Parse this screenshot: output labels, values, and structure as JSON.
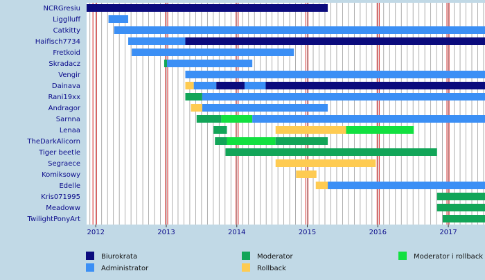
{
  "chart_data": {
    "type": "gantt",
    "x_axis": {
      "unit": "year",
      "range": [
        2011.87,
        2017.52
      ],
      "ticks": [
        2012,
        2013,
        2014,
        2015,
        2016,
        2017
      ],
      "tick_labels": [
        "2012",
        "2013",
        "2014",
        "2015",
        "2016",
        "2017"
      ],
      "red_lines": [
        2011.96,
        2012.01,
        2012.99,
        2013.02,
        2013.99,
        2014.02,
        2014.98,
        2015.01,
        2015.99,
        2016.02,
        2016.98,
        2017.01
      ],
      "minor_grid": "monthly"
    },
    "legend": [
      {
        "key": "biurokrata",
        "label": "Biurokrata",
        "color": "#0b0b7d"
      },
      {
        "key": "admin",
        "label": "Administrator",
        "color": "#3b8ff5"
      },
      {
        "key": "moderator",
        "label": "Moderator",
        "color": "#12a558"
      },
      {
        "key": "rollback",
        "label": "Rollback",
        "color": "#fecb52"
      },
      {
        "key": "modrb",
        "label": "Moderator i rollback",
        "color": "#12e040"
      }
    ],
    "rows": [
      {
        "name": "NCRGresiu",
        "bars": [
          {
            "role": "biurokrata",
            "start": 2011.87,
            "end": 2015.29
          }
        ]
      },
      {
        "name": "Ligglluff",
        "bars": [
          {
            "role": "admin",
            "start": 2012.18,
            "end": 2012.46
          }
        ]
      },
      {
        "name": "Catkitty",
        "bars": [
          {
            "role": "admin",
            "start": 2012.26,
            "end": 2017.52
          }
        ]
      },
      {
        "name": "Haifisch7734",
        "bars": [
          {
            "role": "admin",
            "start": 2012.46,
            "end": 2013.27
          },
          {
            "role": "biurokrata",
            "start": 2013.27,
            "end": 2017.52
          }
        ]
      },
      {
        "name": "Fretkoid",
        "bars": [
          {
            "role": "admin",
            "start": 2012.51,
            "end": 2014.81
          }
        ]
      },
      {
        "name": "Skradacz",
        "bars": [
          {
            "role": "moderator",
            "start": 2012.97,
            "end": 2013.01
          },
          {
            "role": "admin",
            "start": 2013.01,
            "end": 2014.22
          }
        ]
      },
      {
        "name": "Vengir",
        "bars": [
          {
            "role": "admin",
            "start": 2013.27,
            "end": 2017.52
          }
        ]
      },
      {
        "name": "Dainava",
        "bars": [
          {
            "role": "rollback",
            "start": 2013.27,
            "end": 2013.39
          },
          {
            "role": "admin",
            "start": 2013.39,
            "end": 2013.71
          },
          {
            "role": "biurokrata",
            "start": 2013.71,
            "end": 2014.11
          },
          {
            "role": "admin",
            "start": 2014.11,
            "end": 2014.41
          },
          {
            "role": "biurokrata",
            "start": 2014.41,
            "end": 2017.52
          }
        ]
      },
      {
        "name": "Rani19xx",
        "bars": [
          {
            "role": "moderator",
            "start": 2013.27,
            "end": 2013.51
          },
          {
            "role": "admin",
            "start": 2013.51,
            "end": 2017.52
          }
        ]
      },
      {
        "name": "Andragor",
        "bars": [
          {
            "role": "rollback",
            "start": 2013.35,
            "end": 2013.51
          },
          {
            "role": "admin",
            "start": 2013.51,
            "end": 2015.29
          }
        ]
      },
      {
        "name": "Sarnna",
        "bars": [
          {
            "role": "moderator",
            "start": 2013.43,
            "end": 2013.78
          },
          {
            "role": "modrb",
            "start": 2013.78,
            "end": 2014.22
          },
          {
            "role": "admin",
            "start": 2014.22,
            "end": 2017.52
          }
        ]
      },
      {
        "name": "Lenaa",
        "bars": [
          {
            "role": "moderator",
            "start": 2013.67,
            "end": 2013.86
          },
          {
            "role": "rollback",
            "start": 2014.55,
            "end": 2015.55
          },
          {
            "role": "modrb",
            "start": 2015.55,
            "end": 2016.51
          }
        ]
      },
      {
        "name": "TheDarkAlicorn",
        "bars": [
          {
            "role": "moderator",
            "start": 2013.69,
            "end": 2013.86
          },
          {
            "role": "modrb",
            "start": 2013.86,
            "end": 2014.55
          },
          {
            "role": "moderator",
            "start": 2014.55,
            "end": 2015.29
          }
        ]
      },
      {
        "name": "Tiger beetle",
        "bars": [
          {
            "role": "moderator",
            "start": 2013.84,
            "end": 2016.84
          }
        ]
      },
      {
        "name": "Segraece",
        "bars": [
          {
            "role": "rollback",
            "start": 2014.55,
            "end": 2015.97
          }
        ]
      },
      {
        "name": "Komiksowy",
        "bars": [
          {
            "role": "rollback",
            "start": 2014.84,
            "end": 2015.13
          }
        ]
      },
      {
        "name": "Edelle",
        "bars": [
          {
            "role": "rollback",
            "start": 2015.12,
            "end": 2015.29
          },
          {
            "role": "admin",
            "start": 2015.29,
            "end": 2017.52
          }
        ]
      },
      {
        "name": "Kris071995",
        "bars": [
          {
            "role": "moderator",
            "start": 2016.84,
            "end": 2017.52
          }
        ]
      },
      {
        "name": "Meadoww",
        "bars": [
          {
            "role": "moderator",
            "start": 2016.84,
            "end": 2017.52
          }
        ]
      },
      {
        "name": "TwilightPonyArt",
        "bars": [
          {
            "role": "moderator",
            "start": 2016.92,
            "end": 2017.52
          }
        ]
      }
    ]
  }
}
